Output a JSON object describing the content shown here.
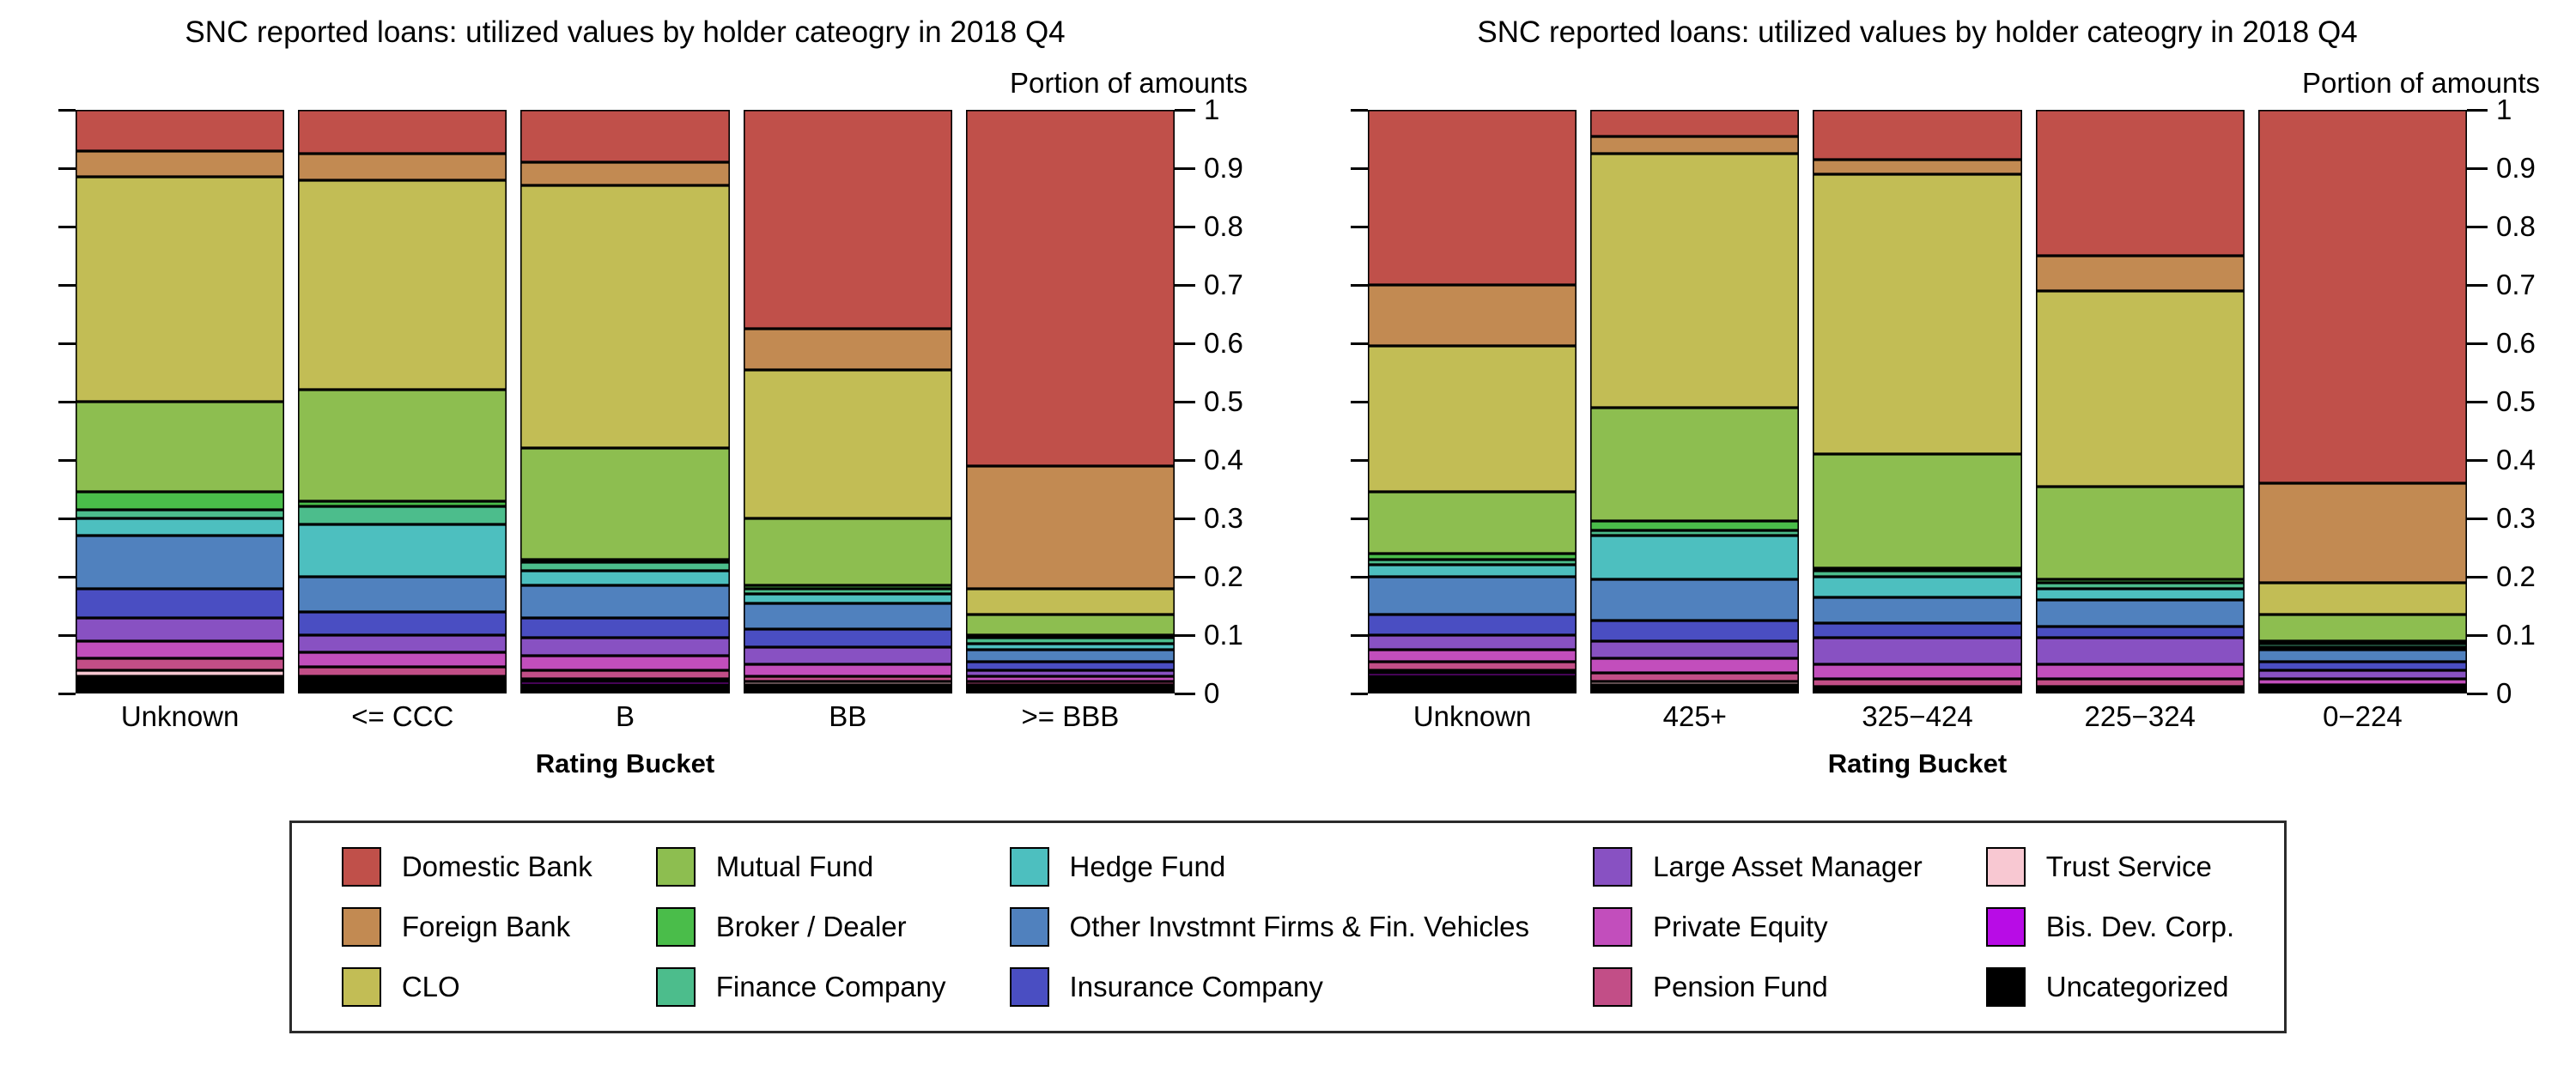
{
  "page": {
    "background": "#ffffff"
  },
  "holders": [
    {
      "label": "Domestic Bank",
      "color": "#c0504a"
    },
    {
      "label": "Foreign Bank",
      "color": "#c28a52"
    },
    {
      "label": "CLO",
      "color": "#c2bd55"
    },
    {
      "label": "Mutual Fund",
      "color": "#8dbe50"
    },
    {
      "label": "Broker / Dealer",
      "color": "#4abd4a"
    },
    {
      "label": "Finance Company",
      "color": "#4cbd8c"
    },
    {
      "label": "Hedge Fund",
      "color": "#4dbfbf"
    },
    {
      "label": "Other Invstmnt Firms & Fin. Vehicles",
      "color": "#5081be"
    },
    {
      "label": "Insurance Company",
      "color": "#4a4ec2"
    },
    {
      "label": "Large Asset Manager",
      "color": "#8851c2"
    },
    {
      "label": "Private Equity",
      "color": "#c24ebc"
    },
    {
      "label": "Pension Fund",
      "color": "#c24e87"
    },
    {
      "label": "Trust Service",
      "color": "#f8c8d2"
    },
    {
      "label": "Bis. Dev. Corp.",
      "color": "#b80ce6"
    },
    {
      "label": "Uncategorized",
      "color": "#000000"
    }
  ],
  "chart_data": [
    {
      "type": "bar",
      "stacked": true,
      "title": "SNC reported loans: utilized values by holder cateogry in 2018 Q4",
      "y_axis_title": "Portion of amounts",
      "xlabel": "Rating Bucket",
      "ylim": [
        0,
        1
      ],
      "grid": false,
      "legend_position": "bottom-shared",
      "categories": [
        "Unknown",
        "<= CCC",
        "B",
        "BB",
        ">= BBB"
      ],
      "yticks": [
        {
          "value": 0,
          "label": "0"
        },
        {
          "value": 0.1,
          "label": "0.1"
        },
        {
          "value": 0.2,
          "label": "0.2"
        },
        {
          "value": 0.3,
          "label": "0.3"
        },
        {
          "value": 0.4,
          "label": "0.4"
        },
        {
          "value": 0.5,
          "label": "0.5"
        },
        {
          "value": 0.6,
          "label": "0.6"
        },
        {
          "value": 0.7,
          "label": "0.7"
        },
        {
          "value": 0.8,
          "label": "0.8"
        },
        {
          "value": 0.9,
          "label": "0.9"
        },
        {
          "value": 1,
          "label": "1"
        }
      ],
      "series": [
        {
          "name": "Domestic Bank",
          "values": [
            0.07,
            0.075,
            0.09,
            0.375,
            0.61
          ]
        },
        {
          "name": "Foreign Bank",
          "values": [
            0.045,
            0.045,
            0.04,
            0.07,
            0.21
          ]
        },
        {
          "name": "CLO",
          "values": [
            0.385,
            0.36,
            0.45,
            0.255,
            0.045
          ]
        },
        {
          "name": "Mutual Fund",
          "values": [
            0.155,
            0.19,
            0.19,
            0.115,
            0.035
          ]
        },
        {
          "name": "Broker / Dealer",
          "values": [
            0.03,
            0.01,
            0.005,
            0.005,
            0.005
          ]
        },
        {
          "name": "Finance Company",
          "values": [
            0.015,
            0.03,
            0.015,
            0.01,
            0.01
          ]
        },
        {
          "name": "Hedge Fund",
          "values": [
            0.03,
            0.09,
            0.025,
            0.015,
            0.01
          ]
        },
        {
          "name": "Other Invstmnt Firms & Fin. Vehicles",
          "values": [
            0.09,
            0.06,
            0.055,
            0.045,
            0.02
          ]
        },
        {
          "name": "Insurance Company",
          "values": [
            0.05,
            0.04,
            0.035,
            0.03,
            0.015
          ]
        },
        {
          "name": "Large Asset Manager",
          "values": [
            0.04,
            0.03,
            0.03,
            0.03,
            0.01
          ]
        },
        {
          "name": "Private Equity",
          "values": [
            0.03,
            0.025,
            0.025,
            0.02,
            0.01
          ]
        },
        {
          "name": "Pension Fund",
          "values": [
            0.02,
            0.015,
            0.015,
            0.01,
            0.005
          ]
        },
        {
          "name": "Trust Service",
          "values": [
            0.01,
            0.005,
            0.005,
            0.005,
            0.005
          ]
        },
        {
          "name": "Bis. Dev. Corp.",
          "values": [
            0.005,
            0.005,
            0.005,
            0.005,
            0.002
          ]
        },
        {
          "name": "Uncategorized",
          "values": [
            0.025,
            0.02,
            0.015,
            0.01,
            0.008
          ]
        }
      ]
    },
    {
      "type": "bar",
      "stacked": true,
      "title": "SNC reported loans: utilized values by holder cateogry in 2018 Q4",
      "y_axis_title": "Portion of amounts",
      "xlabel": "Rating Bucket",
      "ylim": [
        0,
        1
      ],
      "grid": false,
      "legend_position": "bottom-shared",
      "categories": [
        "Unknown",
        "425+",
        "325−424",
        "225−324",
        "0−224"
      ],
      "yticks": [
        {
          "value": 0,
          "label": "0"
        },
        {
          "value": 0.1,
          "label": "0.1"
        },
        {
          "value": 0.2,
          "label": "0.2"
        },
        {
          "value": 0.3,
          "label": "0.3"
        },
        {
          "value": 0.4,
          "label": "0.4"
        },
        {
          "value": 0.5,
          "label": "0.5"
        },
        {
          "value": 0.6,
          "label": "0.6"
        },
        {
          "value": 0.7,
          "label": "0.7"
        },
        {
          "value": 0.8,
          "label": "0.8"
        },
        {
          "value": 0.9,
          "label": "0.9"
        },
        {
          "value": 1,
          "label": "1"
        }
      ],
      "series": [
        {
          "name": "Domestic Bank",
          "values": [
            0.3,
            0.045,
            0.085,
            0.25,
            0.64
          ]
        },
        {
          "name": "Foreign Bank",
          "values": [
            0.105,
            0.03,
            0.025,
            0.06,
            0.17
          ]
        },
        {
          "name": "CLO",
          "values": [
            0.25,
            0.435,
            0.48,
            0.335,
            0.055
          ]
        },
        {
          "name": "Mutual Fund",
          "values": [
            0.105,
            0.195,
            0.195,
            0.16,
            0.045
          ]
        },
        {
          "name": "Broker / Dealer",
          "values": [
            0.01,
            0.015,
            0.005,
            0.005,
            0.005
          ]
        },
        {
          "name": "Finance Company",
          "values": [
            0.01,
            0.01,
            0.01,
            0.01,
            0.005
          ]
        },
        {
          "name": "Hedge Fund",
          "values": [
            0.02,
            0.075,
            0.035,
            0.02,
            0.005
          ]
        },
        {
          "name": "Other Invstmnt Firms & Fin. Vehicles",
          "values": [
            0.065,
            0.07,
            0.045,
            0.045,
            0.02
          ]
        },
        {
          "name": "Insurance Company",
          "values": [
            0.035,
            0.035,
            0.025,
            0.02,
            0.015
          ]
        },
        {
          "name": "Large Asset Manager",
          "values": [
            0.025,
            0.03,
            0.045,
            0.045,
            0.015
          ]
        },
        {
          "name": "Private Equity",
          "values": [
            0.02,
            0.025,
            0.025,
            0.025,
            0.01
          ]
        },
        {
          "name": "Pension Fund",
          "values": [
            0.015,
            0.015,
            0.013,
            0.013,
            0.005
          ]
        },
        {
          "name": "Trust Service",
          "values": [
            0.005,
            0.005,
            0.004,
            0.004,
            0.003
          ]
        },
        {
          "name": "Bis. Dev. Corp.",
          "values": [
            0.005,
            0.005,
            0.003,
            0.003,
            0.002
          ]
        },
        {
          "name": "Uncategorized",
          "values": [
            0.03,
            0.01,
            0.005,
            0.005,
            0.005
          ]
        }
      ]
    }
  ]
}
